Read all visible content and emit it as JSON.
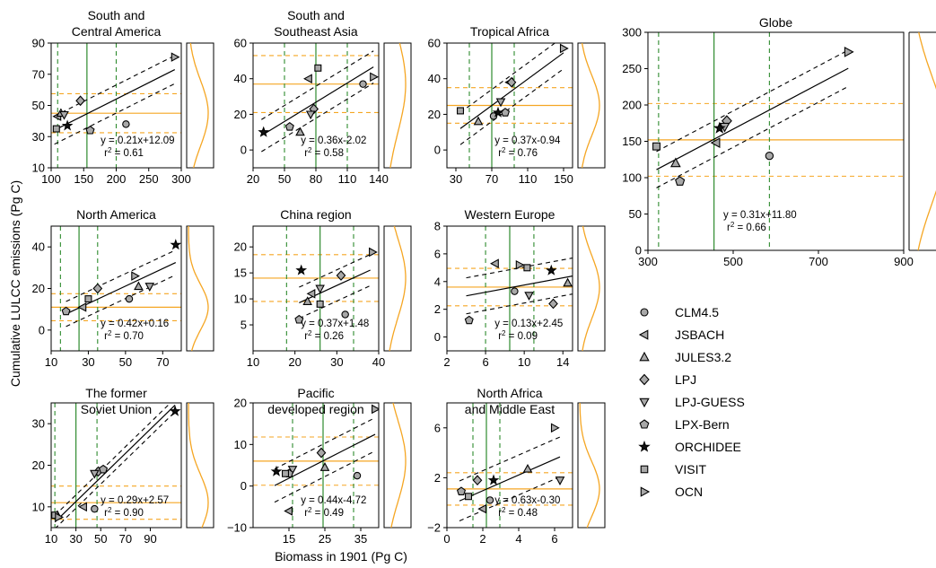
{
  "figure": {
    "ylabel": "Cumulative LULCC emissions (Pg C)",
    "xlabel": "Biomass in 1901 (Pg C)"
  },
  "colors": {
    "axis": "#000000",
    "green": "#2e8b2e",
    "orange": "#f5a623",
    "marker_fill": "#a8a8a8"
  },
  "legend": {
    "items": [
      {
        "label": "CLM4.5",
        "marker": "circle"
      },
      {
        "label": "JSBACH",
        "marker": "triangle-left"
      },
      {
        "label": "JULES3.2",
        "marker": "triangle-up"
      },
      {
        "label": "LPJ",
        "marker": "diamond"
      },
      {
        "label": "LPJ-GUESS",
        "marker": "triangle-down"
      },
      {
        "label": "LPX-Bern",
        "marker": "pentagon"
      },
      {
        "label": "ORCHIDEE",
        "marker": "star"
      },
      {
        "label": "VISIT",
        "marker": "square"
      },
      {
        "label": "OCN",
        "marker": "triangle-right"
      }
    ]
  },
  "chart_data": [
    {
      "type": "scatter",
      "title": "South and\nCentral America",
      "xlim": [
        100,
        300
      ],
      "xticks": [
        100,
        150,
        200,
        250,
        300
      ],
      "ylim": [
        10,
        90
      ],
      "yticks": [
        10,
        30,
        50,
        70,
        90
      ],
      "equation": "y = 0.21x+12.09",
      "r2": "0.61",
      "fit": {
        "slope": 0.21,
        "intercept": 12.09,
        "x_range": [
          105,
          290
        ],
        "band": 9
      },
      "xmean": 155,
      "xsd": 45,
      "ymean": 45,
      "ysd": 12.5,
      "points": [
        {
          "model": "CLM4.5",
          "x": 215,
          "y": 38
        },
        {
          "model": "JSBACH",
          "x": 110,
          "y": 43
        },
        {
          "model": "JULES3.2",
          "x": 115,
          "y": 45
        },
        {
          "model": "LPJ",
          "x": 145,
          "y": 53
        },
        {
          "model": "LPJ-GUESS",
          "x": 120,
          "y": 44
        },
        {
          "model": "LPX-Bern",
          "x": 160,
          "y": 34
        },
        {
          "model": "ORCHIDEE",
          "x": 125,
          "y": 37
        },
        {
          "model": "VISIT",
          "x": 108,
          "y": 35
        },
        {
          "model": "OCN",
          "x": 290,
          "y": 81
        }
      ]
    },
    {
      "type": "scatter",
      "title": "South and\nSoutheast Asia",
      "xlim": [
        20,
        140
      ],
      "xticks": [
        20,
        50,
        80,
        110,
        140
      ],
      "ylim": [
        -10,
        60
      ],
      "yticks": [
        0,
        20,
        40,
        60
      ],
      "equation": "y = 0.36x-2.02",
      "r2": "0.58",
      "fit": {
        "slope": 0.36,
        "intercept": -2.02,
        "x_range": [
          28,
          135
        ],
        "band": 9
      },
      "xmean": 80,
      "xsd": 30,
      "ymean": 37,
      "ysd": 16,
      "points": [
        {
          "model": "CLM4.5",
          "x": 125,
          "y": 37
        },
        {
          "model": "JSBACH",
          "x": 73,
          "y": 40
        },
        {
          "model": "JULES3.2",
          "x": 65,
          "y": 10
        },
        {
          "model": "LPJ",
          "x": 78,
          "y": 23
        },
        {
          "model": "LPJ-GUESS",
          "x": 75,
          "y": 20
        },
        {
          "model": "LPX-Bern",
          "x": 55,
          "y": 13
        },
        {
          "model": "ORCHIDEE",
          "x": 30,
          "y": 10
        },
        {
          "model": "VISIT",
          "x": 82,
          "y": 46
        },
        {
          "model": "OCN",
          "x": 135,
          "y": 41
        }
      ]
    },
    {
      "type": "scatter",
      "title": "Tropical Africa",
      "xlim": [
        20,
        160
      ],
      "xticks": [
        30,
        70,
        110,
        150
      ],
      "ylim": [
        -10,
        60
      ],
      "yticks": [
        0,
        20,
        40,
        60
      ],
      "equation": "y = 0.37x-0.94",
      "r2": "0.76",
      "fit": {
        "slope": 0.37,
        "intercept": -0.94,
        "x_range": [
          35,
          150
        ],
        "band": 9
      },
      "xmean": 70,
      "xsd": 25,
      "ymean": 25,
      "ysd": 10,
      "points": [
        {
          "model": "CLM4.5",
          "x": 72,
          "y": 19
        },
        {
          "model": "JSBACH",
          "x": 90,
          "y": 38
        },
        {
          "model": "JULES3.2",
          "x": 55,
          "y": 16
        },
        {
          "model": "LPJ",
          "x": 92,
          "y": 38
        },
        {
          "model": "LPJ-GUESS",
          "x": 80,
          "y": 27
        },
        {
          "model": "LPX-Bern",
          "x": 85,
          "y": 21
        },
        {
          "model": "ORCHIDEE",
          "x": 77,
          "y": 21
        },
        {
          "model": "VISIT",
          "x": 35,
          "y": 22
        },
        {
          "model": "OCN",
          "x": 150,
          "y": 57
        }
      ]
    },
    {
      "type": "scatter",
      "title": "Globe",
      "xlim": [
        300,
        900
      ],
      "xticks": [
        300,
        500,
        700,
        900
      ],
      "ylim": [
        0,
        300
      ],
      "yticks": [
        0,
        50,
        100,
        150,
        200,
        250,
        300
      ],
      "equation": "y = 0.31x+11.80",
      "r2": "0.66",
      "fit": {
        "slope": 0.31,
        "intercept": 11.8,
        "x_range": [
          320,
          770
        ],
        "band": 25
      },
      "xmean": 455,
      "xsd": 130,
      "ymean": 152,
      "ysd": 50,
      "points": [
        {
          "model": "CLM4.5",
          "x": 585,
          "y": 130
        },
        {
          "model": "JSBACH",
          "x": 460,
          "y": 148
        },
        {
          "model": "JULES3.2",
          "x": 365,
          "y": 120
        },
        {
          "model": "LPJ",
          "x": 485,
          "y": 178
        },
        {
          "model": "LPJ-GUESS",
          "x": 480,
          "y": 170
        },
        {
          "model": "LPX-Bern",
          "x": 375,
          "y": 95
        },
        {
          "model": "ORCHIDEE",
          "x": 468,
          "y": 168
        },
        {
          "model": "VISIT",
          "x": 320,
          "y": 143
        },
        {
          "model": "OCN",
          "x": 770,
          "y": 273
        }
      ]
    },
    {
      "type": "scatter",
      "title": "North America",
      "xlim": [
        10,
        80
      ],
      "xticks": [
        10,
        30,
        50,
        70
      ],
      "ylim": [
        -10,
        50
      ],
      "yticks": [
        0,
        20,
        40
      ],
      "equation": "y = 0.42x+0.16",
      "r2": "0.70",
      "fit": {
        "slope": 0.42,
        "intercept": 0.16,
        "x_range": [
          18,
          77
        ],
        "band": 6
      },
      "xmean": 25,
      "xsd": 10,
      "ymean": 11,
      "ysd": 6.5,
      "points": [
        {
          "model": "CLM4.5",
          "x": 52,
          "y": 15
        },
        {
          "model": "JSBACH",
          "x": 27,
          "y": 11
        },
        {
          "model": "JULES3.2",
          "x": 57,
          "y": 21
        },
        {
          "model": "LPJ",
          "x": 35,
          "y": 20
        },
        {
          "model": "LPJ-GUESS",
          "x": 63,
          "y": 21
        },
        {
          "model": "LPX-Bern",
          "x": 18,
          "y": 9
        },
        {
          "model": "ORCHIDEE",
          "x": 77,
          "y": 41
        },
        {
          "model": "VISIT",
          "x": 30,
          "y": 15
        },
        {
          "model": "OCN",
          "x": 55,
          "y": 26
        }
      ]
    },
    {
      "type": "scatter",
      "title": "China region",
      "xlim": [
        10,
        40
      ],
      "xticks": [
        10,
        20,
        30,
        40
      ],
      "ylim": [
        0,
        24
      ],
      "yticks": [
        5,
        10,
        15,
        20
      ],
      "equation": "y = 0.37x+1.48",
      "r2": "0.26",
      "fit": {
        "slope": 0.37,
        "intercept": 1.48,
        "x_range": [
          21,
          38
        ],
        "band": 3
      },
      "xmean": 26,
      "xsd": 8,
      "ymean": 14,
      "ysd": 4.5,
      "points": [
        {
          "model": "CLM4.5",
          "x": 32,
          "y": 7
        },
        {
          "model": "JSBACH",
          "x": 24,
          "y": 11
        },
        {
          "model": "JULES3.2",
          "x": 23,
          "y": 9.5
        },
        {
          "model": "LPJ",
          "x": 31,
          "y": 14.5
        },
        {
          "model": "LPJ-GUESS",
          "x": 26,
          "y": 12
        },
        {
          "model": "LPX-Bern",
          "x": 21,
          "y": 6
        },
        {
          "model": "ORCHIDEE",
          "x": 21.5,
          "y": 15.5
        },
        {
          "model": "VISIT",
          "x": 26,
          "y": 9
        },
        {
          "model": "OCN",
          "x": 38.5,
          "y": 19
        }
      ]
    },
    {
      "type": "scatter",
      "title": "Western Europe",
      "xlim": [
        2,
        15
      ],
      "xticks": [
        2,
        6,
        10,
        14
      ],
      "ylim": [
        -1,
        8
      ],
      "yticks": [
        0,
        2,
        4,
        6,
        8
      ],
      "equation": "y = 0.13x+2.45",
      "r2": "0.09",
      "fit": {
        "slope": 0.13,
        "intercept": 2.45,
        "x_range": [
          4,
          15
        ],
        "band": 1.3
      },
      "xmean": 8.5,
      "xsd": 2.5,
      "ymean": 3.6,
      "ysd": 1.35,
      "points": [
        {
          "model": "CLM4.5",
          "x": 9,
          "y": 3.3
        },
        {
          "model": "JSBACH",
          "x": 7,
          "y": 5.3
        },
        {
          "model": "JULES3.2",
          "x": 14.5,
          "y": 3.9
        },
        {
          "model": "LPJ",
          "x": 13,
          "y": 2.4
        },
        {
          "model": "LPJ-GUESS",
          "x": 10.5,
          "y": 3
        },
        {
          "model": "LPX-Bern",
          "x": 4.3,
          "y": 1.2
        },
        {
          "model": "ORCHIDEE",
          "x": 12.8,
          "y": 4.8
        },
        {
          "model": "VISIT",
          "x": 10.3,
          "y": 5
        },
        {
          "model": "OCN",
          "x": 9.5,
          "y": 5.2
        }
      ]
    },
    {
      "type": "scatter",
      "title": "The former\nSoviet Union",
      "xlim": [
        10,
        115
      ],
      "xticks": [
        10,
        30,
        50,
        70,
        90
      ],
      "ylim": [
        5,
        35
      ],
      "yticks": [
        10,
        20,
        30
      ],
      "equation": "y = 0.29x+2.57",
      "r2": "0.90",
      "fit": {
        "slope": 0.29,
        "intercept": 2.57,
        "x_range": [
          13,
          110
        ],
        "band": 1.6
      },
      "xmean": 30,
      "xsd": 17,
      "ymean": 11,
      "ysd": 4,
      "points": [
        {
          "model": "CLM4.5",
          "x": 45,
          "y": 9.5
        },
        {
          "model": "JSBACH",
          "x": 36,
          "y": 10
        },
        {
          "model": "JULES3.2",
          "x": 15,
          "y": 8
        },
        {
          "model": "LPJ",
          "x": 48,
          "y": 18.5
        },
        {
          "model": "LPJ-GUESS",
          "x": 45,
          "y": 18
        },
        {
          "model": "LPX-Bern",
          "x": 52,
          "y": 19
        },
        {
          "model": "ORCHIDEE",
          "x": 110,
          "y": 33
        },
        {
          "model": "VISIT",
          "x": 13,
          "y": 8
        },
        {
          "model": "OCN",
          "x": 16,
          "y": 7.5
        }
      ]
    },
    {
      "type": "scatter",
      "title": "Pacific\ndeveloped region",
      "xlim": [
        5,
        40
      ],
      "xticks": [
        15,
        25,
        35
      ],
      "ylim": [
        -10,
        20
      ],
      "yticks": [
        -10,
        0,
        10,
        20
      ],
      "equation": "y = 0.44x-4.72",
      "r2": "0.49",
      "fit": {
        "slope": 0.44,
        "intercept": -4.72,
        "x_range": [
          11,
          39
        ],
        "band": 4
      },
      "xmean": 24.5,
      "xsd": 8.5,
      "ymean": 6,
      "ysd": 5.8,
      "points": [
        {
          "model": "CLM4.5",
          "x": 34,
          "y": 2.5
        },
        {
          "model": "JSBACH",
          "x": 15,
          "y": -6
        },
        {
          "model": "JULES3.2",
          "x": 25,
          "y": 4.5
        },
        {
          "model": "LPJ",
          "x": 24,
          "y": 8
        },
        {
          "model": "LPJ-GUESS",
          "x": 16,
          "y": 4
        },
        {
          "model": "LPX-Bern",
          "x": 15,
          "y": 3
        },
        {
          "model": "ORCHIDEE",
          "x": 11.5,
          "y": 3.5
        },
        {
          "model": "VISIT",
          "x": 14,
          "y": 3
        },
        {
          "model": "OCN",
          "x": 39,
          "y": 18.5
        }
      ]
    },
    {
      "type": "scatter",
      "title": "North Africa\nand Middle East",
      "xlim": [
        0,
        7
      ],
      "xticks": [
        0,
        2,
        4,
        6
      ],
      "ylim": [
        -2,
        8
      ],
      "yticks": [
        -2,
        2,
        6
      ],
      "equation": "y = 0.63x-0.30",
      "r2": "0.48",
      "fit": {
        "slope": 0.63,
        "intercept": -0.3,
        "x_range": [
          0.7,
          6.3
        ],
        "band": 1.6
      },
      "xmean": 2.2,
      "xsd": 0.75,
      "ymean": 1.1,
      "ysd": 1.3,
      "points": [
        {
          "model": "CLM4.5",
          "x": 2.4,
          "y": 0.2
        },
        {
          "model": "JSBACH",
          "x": 2,
          "y": -0.5
        },
        {
          "model": "JULES3.2",
          "x": 4.5,
          "y": 2.7
        },
        {
          "model": "LPJ",
          "x": 1.7,
          "y": 1.8
        },
        {
          "model": "LPJ-GUESS",
          "x": 6.3,
          "y": 1.8
        },
        {
          "model": "LPX-Bern",
          "x": 0.8,
          "y": 0.9
        },
        {
          "model": "ORCHIDEE",
          "x": 2.6,
          "y": 1.8
        },
        {
          "model": "VISIT",
          "x": 1.2,
          "y": 0.5
        },
        {
          "model": "OCN",
          "x": 6,
          "y": 6
        }
      ]
    }
  ]
}
